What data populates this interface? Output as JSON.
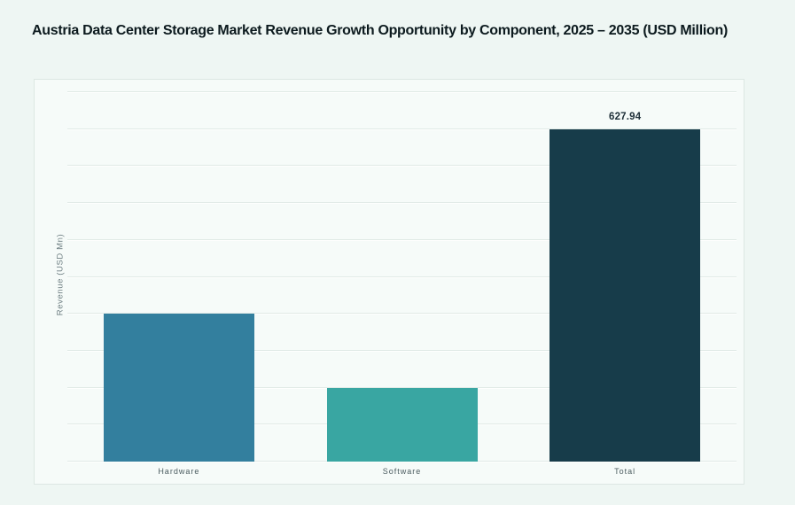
{
  "title": "Austria Data Center Storage Market Revenue Growth Opportunity by Component, 2025 – 2035 (USD Million)",
  "chart_data": {
    "type": "bar",
    "categories": [
      "Hardware",
      "Software",
      "Total"
    ],
    "values": [
      279.1,
      139.5,
      627.94
    ],
    "data_labels": [
      "",
      "",
      "627.94"
    ],
    "colors": [
      "#337f9e",
      "#39a6a2",
      "#173c4a"
    ],
    "title": "Austria Data Center Storage Market Revenue Growth Opportunity by Component, 2025 – 2035 (USD Million)",
    "xlabel": "",
    "ylabel": "Revenue (USD Mn)",
    "ylim": [
      0,
      698
    ],
    "gridline_count": 10,
    "grid": "horizontal",
    "y_tick_labels_visible": false,
    "legend": "none"
  }
}
